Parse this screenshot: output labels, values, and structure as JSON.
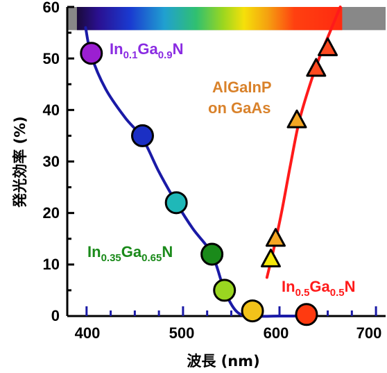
{
  "chart_data": {
    "type": "scatter",
    "xlabel": "波長 (nm)",
    "ylabel": "発光効率 (%)",
    "xlim": [
      380,
      710
    ],
    "ylim": [
      0,
      60
    ],
    "x_ticks": [
      400,
      500,
      600,
      700
    ],
    "y_ticks": [
      0,
      10,
      20,
      30,
      40,
      50,
      60
    ],
    "x_tick_labels": [
      "400",
      "500",
      "600",
      "700"
    ],
    "y_tick_labels": [
      "0",
      "10",
      "20",
      "30",
      "40",
      "50",
      "60"
    ],
    "grid": false,
    "spectrum_bar": {
      "from_nm": 390,
      "to_nm": 665,
      "y_range": [
        55.5,
        60
      ],
      "outside_color": "#888888"
    },
    "series": [
      {
        "marker": "circle",
        "line_color": "#1a1aa6",
        "x": [
          405,
          458,
          493,
          530,
          543,
          572,
          628
        ],
        "y": [
          51,
          35,
          22,
          12,
          5,
          1,
          0.3
        ],
        "colors": [
          "#9b1fd1",
          "#1b2fc4",
          "#1fb8b8",
          "#1a8a1a",
          "#9ad620",
          "#f2c21a",
          "#ff3a10"
        ],
        "curve_x": [
          399,
          405,
          420,
          440,
          458,
          475,
          493,
          510,
          530,
          543,
          556,
          572,
          600,
          628
        ],
        "curve_y": [
          56,
          50.5,
          44,
          38.5,
          34.5,
          28,
          22,
          17,
          12,
          5,
          0.8,
          0,
          0,
          0
        ]
      },
      {
        "marker": "triangle",
        "line_color": "#ff1a1a",
        "x": [
          591,
          596,
          618,
          638,
          650
        ],
        "y": [
          11,
          15,
          38,
          48,
          52
        ],
        "colors": [
          "#f5e70a",
          "#f5a623",
          "#f5a623",
          "#ff4a20",
          "#ff4a20"
        ],
        "curve_x": [
          587,
          594,
          602,
          611,
          620,
          630,
          641,
          652,
          663
        ],
        "curve_y": [
          7.5,
          13,
          20,
          29,
          37.5,
          44,
          50,
          55,
          60
        ]
      }
    ],
    "annotations": [
      {
        "id": "ingan01",
        "base": "In",
        "s1": "0.1",
        "mid": "Ga",
        "s2": "0.9",
        "end": "N",
        "color": "#8a2be2"
      },
      {
        "id": "ingan035",
        "base": "In",
        "s1": "0.35",
        "mid": "Ga",
        "s2": "0.65",
        "end": "N",
        "color": "#1a8a1a"
      },
      {
        "id": "ingan05",
        "base": "In",
        "s1": "0.5",
        "mid": "Ga",
        "s2": "0.5",
        "end": "N",
        "color": "#ff1a1a"
      },
      {
        "id": "algainp",
        "line1": "AlGaInP",
        "line2": "on GaAs",
        "color": "#d9822b"
      }
    ]
  }
}
